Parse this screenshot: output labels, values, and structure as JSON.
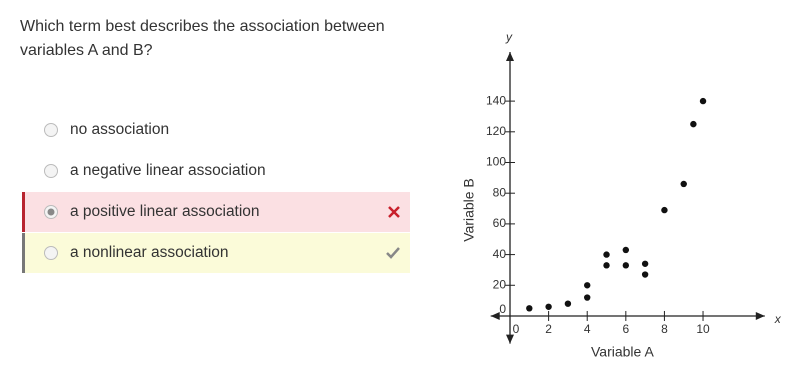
{
  "question": "Which term best describes the association between variables A and B?",
  "options": [
    "no association",
    "a negative linear association",
    "a positive linear association",
    "a nonlinear association"
  ],
  "selected_index": 2,
  "correct_index": 3,
  "chart_data": {
    "type": "scatter",
    "x_axis_symbol": "x",
    "y_axis_symbol": "y",
    "x_label": "Variable A",
    "y_label": "Variable B",
    "x": [
      1,
      2,
      3,
      4,
      4,
      5,
      5,
      6,
      6,
      7,
      7,
      8,
      9,
      9.5,
      10
    ],
    "values": [
      5,
      6,
      8,
      12,
      20,
      33,
      40,
      43,
      33,
      34,
      27,
      69,
      86,
      125,
      140
    ],
    "color": "#111111",
    "xlim": [
      -1,
      13.2
    ],
    "ylim": [
      -18,
      172
    ],
    "xticks": [
      0,
      2,
      4,
      6,
      8,
      10
    ],
    "yticks": [
      0,
      20,
      40,
      60,
      80,
      100,
      120,
      140
    ]
  }
}
